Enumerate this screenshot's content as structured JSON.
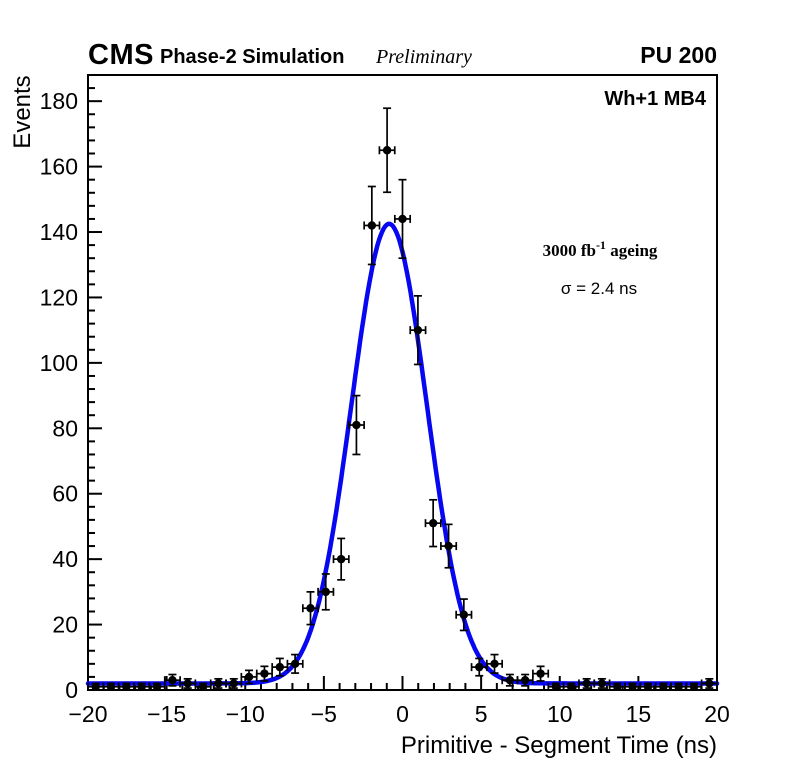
{
  "header": {
    "experiment": "CMS",
    "simulation_label": "Phase-2 Simulation",
    "preliminary": "Preliminary",
    "pileup": "PU 200"
  },
  "plot": {
    "chamber_label": "Wh+1 MB4",
    "lumi_prefix": "3000 fb",
    "lumi_sup": "-1",
    "lumi_suffix": " ageing",
    "sigma_text": "σ = 2.4 ns"
  },
  "chart_data": {
    "type": "scatter",
    "subtype": "histogram-with-error-bars-and-gaussian-fit",
    "title": "",
    "xlabel": "Primitive - Segment Time (ns)",
    "ylabel": "Events",
    "xlim": [
      -20,
      20
    ],
    "ylim": [
      0,
      188
    ],
    "x_major_step": 5,
    "x_minor_step": 1,
    "y_major_step": 20,
    "y_minor_step": 4,
    "n_bins": 41,
    "bin_width": 0.976,
    "errors": "sqrt(y)",
    "grid": false,
    "marker_color": "#000000",
    "x": [
      -19.51,
      -18.54,
      -17.56,
      -16.59,
      -15.61,
      -14.63,
      -13.66,
      -12.68,
      -11.71,
      -10.73,
      -9.76,
      -8.78,
      -7.8,
      -6.83,
      -5.85,
      -4.88,
      -3.9,
      -2.93,
      -1.95,
      -0.98,
      0.0,
      0.98,
      1.95,
      2.93,
      3.9,
      4.88,
      5.85,
      6.83,
      7.8,
      8.78,
      9.76,
      10.73,
      11.71,
      12.68,
      13.66,
      14.63,
      15.61,
      16.59,
      17.56,
      18.54,
      19.51
    ],
    "y": [
      1,
      1,
      1,
      1,
      1,
      3,
      2,
      1,
      2,
      2,
      4,
      5,
      7,
      8,
      25,
      30,
      40,
      81,
      142,
      165,
      144,
      110,
      51,
      44,
      23,
      7,
      8,
      3,
      3,
      5,
      1,
      1,
      2,
      2,
      1,
      1,
      1,
      1,
      1,
      1,
      2
    ],
    "fit": {
      "model": "gaussian + constant",
      "amplitude": 140.5,
      "mean": -0.85,
      "sigma": 2.4,
      "constant": 2.0,
      "color": "#0707f2"
    }
  }
}
